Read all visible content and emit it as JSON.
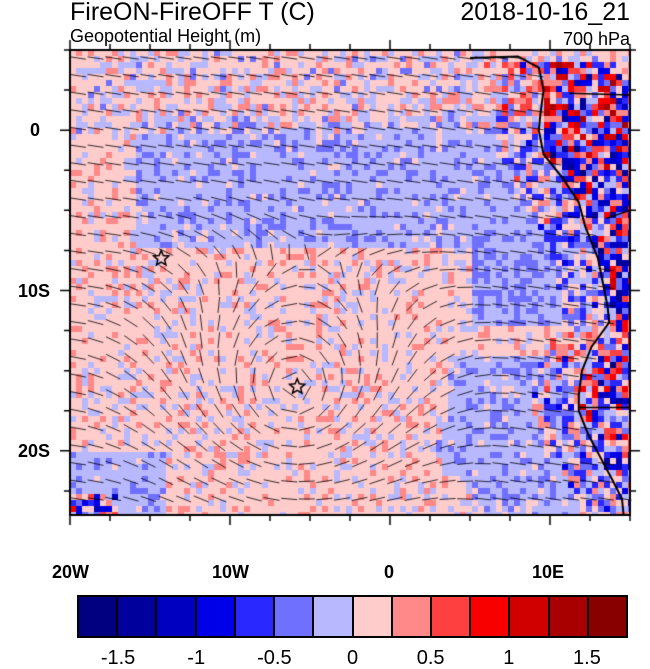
{
  "header": {
    "title": "FireON-FireOFF T (C)",
    "subtitle": "Geopotential Height (m)",
    "datetime": "2018-10-16_21",
    "level": "700 hPa"
  },
  "map": {
    "lon_range": [
      -20,
      15
    ],
    "lat_range": [
      -24,
      5
    ],
    "lon_ticks": [
      {
        "v": -20,
        "label": "20W"
      },
      {
        "v": -10,
        "label": "10W"
      },
      {
        "v": 0,
        "label": "0"
      },
      {
        "v": 10,
        "label": "10E"
      }
    ],
    "lat_ticks": [
      {
        "v": 0,
        "label": "0"
      },
      {
        "v": -10,
        "label": "10S"
      },
      {
        "v": -20,
        "label": "20S"
      }
    ],
    "markers": [
      {
        "type": "star",
        "lon": -14.3,
        "lat": -8
      },
      {
        "type": "star",
        "lon": -5.8,
        "lat": -16
      }
    ]
  },
  "colorbar": {
    "colors": [
      "#000080",
      "#00009c",
      "#0000c0",
      "#0000e8",
      "#2828ff",
      "#7070ff",
      "#b8b8ff",
      "#ffcccc",
      "#ff8888",
      "#ff4040",
      "#f80000",
      "#d00000",
      "#a80000",
      "#880000"
    ],
    "labels": [
      {
        "i": 1,
        "label": "-1.5"
      },
      {
        "i": 3,
        "label": "-1"
      },
      {
        "i": 5,
        "label": "-0.5"
      },
      {
        "i": 7,
        "label": "0"
      },
      {
        "i": 9,
        "label": "0.5"
      },
      {
        "i": 11,
        "label": "1"
      },
      {
        "i": 13,
        "label": "1.5"
      }
    ]
  }
}
